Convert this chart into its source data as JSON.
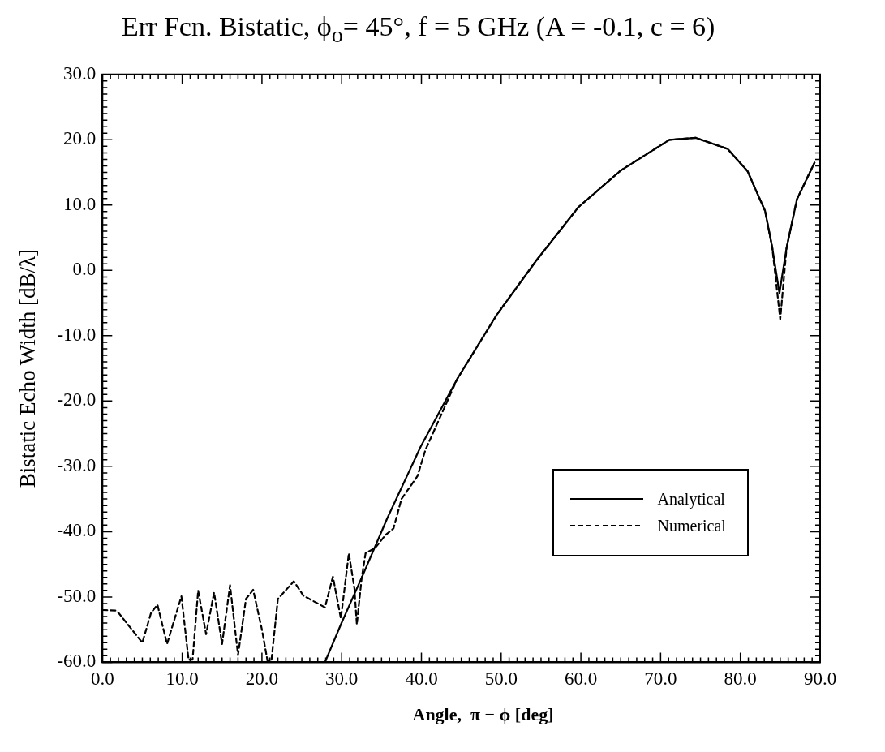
{
  "chart_data": {
    "type": "line",
    "title": "Err Fcn. Bistatic, ϕ$_{o}$= 45°, f = 5 GHz (A = -0.1, c = 6)",
    "xlabel": "Angle,  π − ϕ [deg]",
    "ylabel": "Bistatic Echo Width [dB/λ]",
    "xlim": [
      0,
      90
    ],
    "ylim": [
      -60,
      30
    ],
    "xticks": [
      {
        "value": 0,
        "label": "0.0"
      },
      {
        "value": 10,
        "label": "10.0"
      },
      {
        "value": 20,
        "label": "20.0"
      },
      {
        "value": 30,
        "label": "30.0"
      },
      {
        "value": 40,
        "label": "40.0"
      },
      {
        "value": 50,
        "label": "50.0"
      },
      {
        "value": 60,
        "label": "60.0"
      },
      {
        "value": 70,
        "label": "70.0"
      },
      {
        "value": 80,
        "label": "80.0"
      },
      {
        "value": 90,
        "label": "90.0"
      }
    ],
    "yticks": [
      {
        "value": -60,
        "label": "-60.0"
      },
      {
        "value": -50,
        "label": "-50.0"
      },
      {
        "value": -40,
        "label": "-40.0"
      },
      {
        "value": -30,
        "label": "-30.0"
      },
      {
        "value": -20,
        "label": "-20.0"
      },
      {
        "value": -10,
        "label": "-10.0"
      },
      {
        "value": 0,
        "label": "0.0"
      },
      {
        "value": 10,
        "label": "10.0"
      },
      {
        "value": 20,
        "label": "20.0"
      },
      {
        "value": 30,
        "label": "30.0"
      }
    ],
    "grid": false,
    "legend": "bottom right",
    "marker": "none",
    "series": [
      {
        "name": "Analytical",
        "color": "#000000",
        "line_style": "solid",
        "x": [
          27.9,
          29.9,
          32.6,
          35.7,
          39.9,
          44.5,
          49.5,
          54.4,
          59.7,
          65.0,
          71.1,
          74.4,
          78.4,
          80.9,
          83.1,
          84.0,
          84.9,
          85.8,
          87.1,
          89.3
        ],
        "values": [
          -60,
          -54.2,
          -46.8,
          -38,
          -27.0,
          -16.6,
          -6.7,
          1.5,
          9.7,
          15.3,
          20,
          20.3,
          18.6,
          15.2,
          9.1,
          3.5,
          -3.5,
          3.5,
          10.9,
          16.5
        ]
      },
      {
        "name": "Numerical",
        "color": "#000000",
        "line_style": "dashed",
        "x": [
          0,
          1.8,
          5.0,
          6.1,
          6.9,
          8.1,
          9.9,
          10.8,
          11.3,
          12.0,
          13.0,
          14.0,
          15.0,
          16.0,
          17.0,
          18.0,
          18.9,
          20.0,
          20.7,
          21.2,
          22.0,
          24.0,
          25.2,
          27.9,
          28.9,
          29.9,
          30.9,
          31.6,
          31.9,
          32.5,
          33.0,
          34.2,
          35.5,
          36.5,
          37.5,
          39.5,
          40.5,
          44.5,
          49.5,
          54.4,
          59.7,
          65.0,
          71.1,
          74.4,
          78.4,
          80.9,
          83.1,
          84.0,
          85.0,
          85.8,
          87.1,
          89.3
        ],
        "values": [
          -52,
          -52.1,
          -57,
          -52.4,
          -51.2,
          -57.2,
          -49.9,
          -59.6,
          -59.6,
          -49,
          -55.7,
          -49.3,
          -57.2,
          -48.2,
          -58.9,
          -50.3,
          -48.9,
          -55,
          -59.8,
          -59.6,
          -50.3,
          -47.6,
          -49.8,
          -51.6,
          -46.9,
          -53.3,
          -43.3,
          -48.7,
          -54.2,
          -47.2,
          -43.3,
          -42.5,
          -40.5,
          -39.5,
          -35,
          -31.5,
          -27.5,
          -16.6,
          -6.7,
          1.5,
          9.7,
          15.3,
          20,
          20.3,
          18.6,
          15.2,
          9.1,
          3.5,
          -7.5,
          3.5,
          10.9,
          16.5
        ]
      }
    ]
  }
}
